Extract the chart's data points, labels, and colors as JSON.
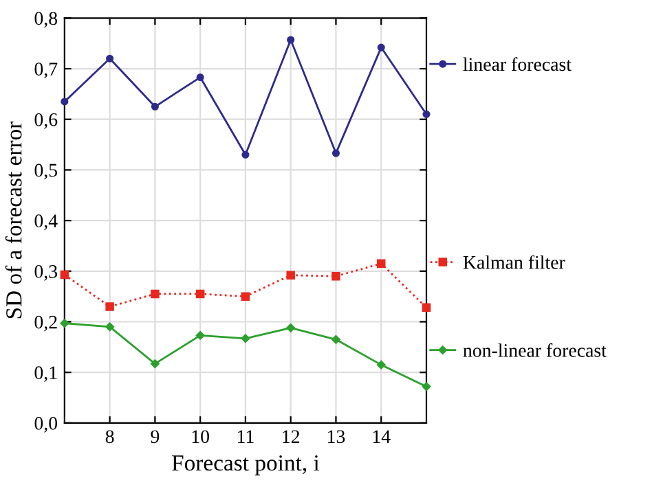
{
  "chart_data": {
    "type": "line",
    "xlabel": "Forecast point, i",
    "ylabel": "SD of a forecast error",
    "x": [
      7,
      8,
      9,
      10,
      11,
      12,
      13,
      14,
      15
    ],
    "xlim": [
      7,
      15
    ],
    "xticks": [
      8,
      9,
      10,
      11,
      12,
      13,
      14
    ],
    "ylim": [
      0,
      0.8
    ],
    "yticks": [
      {
        "value": 0,
        "label": "0,0"
      },
      {
        "value": 0.1,
        "label": "0,1"
      },
      {
        "value": 0.2,
        "label": "0,2"
      },
      {
        "value": 0.3,
        "label": "0,3"
      },
      {
        "value": 0.4,
        "label": "0,4"
      },
      {
        "value": 0.5,
        "label": "0,5"
      },
      {
        "value": 0.6,
        "label": "0,6"
      },
      {
        "value": 0.7,
        "label": "0,7"
      },
      {
        "value": 0.8,
        "label": "0,8"
      }
    ],
    "grid": true,
    "legend": "right",
    "series": [
      {
        "name": "linear forecast",
        "color": "#2e2a8c",
        "marker": "circle",
        "line_style": "solid",
        "values": [
          0.635,
          0.72,
          0.625,
          0.683,
          0.53,
          0.757,
          0.533,
          0.742,
          0.61
        ]
      },
      {
        "name": "Kalman filter",
        "color": "#e8281e",
        "marker": "square",
        "line_style": "dotted",
        "values": [
          0.293,
          0.23,
          0.255,
          0.255,
          0.25,
          0.292,
          0.29,
          0.315,
          0.228
        ]
      },
      {
        "name": "non-linear forecast",
        "color": "#2ca02c",
        "marker": "diamond",
        "line_style": "solid",
        "values": [
          0.197,
          0.19,
          0.117,
          0.173,
          0.167,
          0.188,
          0.165,
          0.115,
          0.072
        ]
      }
    ]
  }
}
